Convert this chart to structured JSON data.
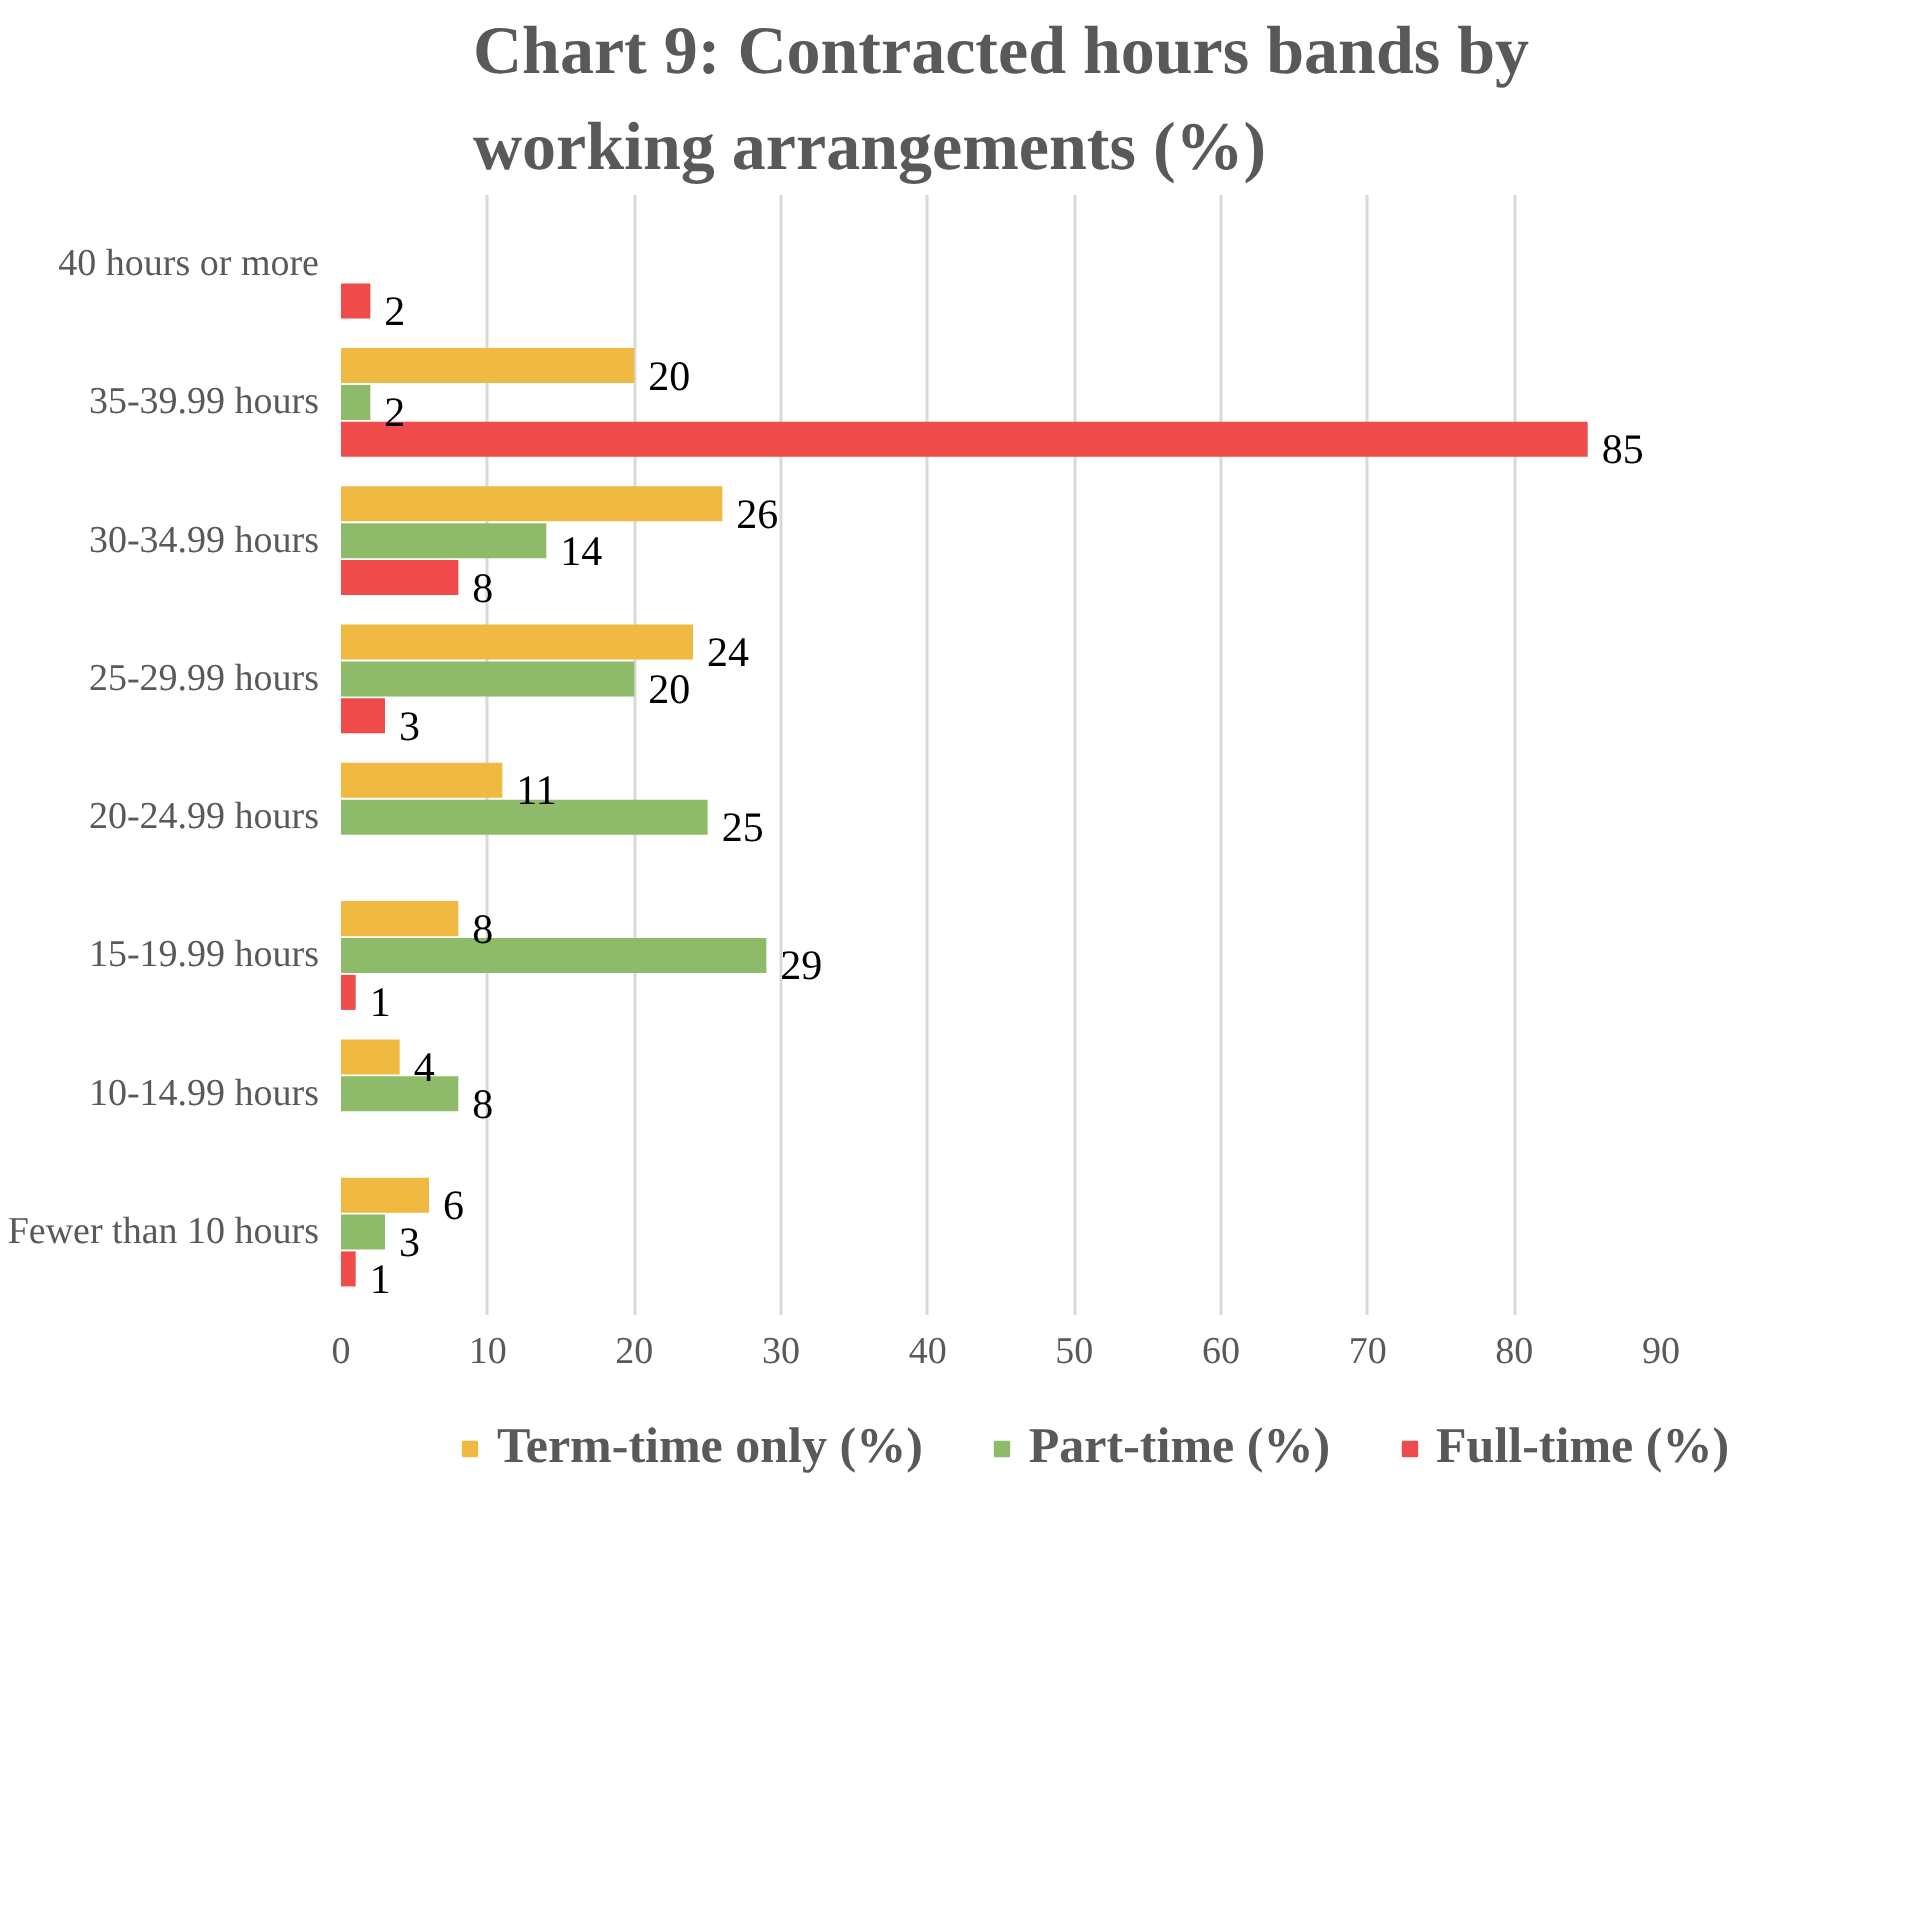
{
  "chart_data": {
    "type": "bar",
    "orientation": "horizontal",
    "title": "Chart 9: Contracted hours bands by working arrangements (%)",
    "categories": [
      "40 hours or more",
      "35-39.99 hours",
      "30-34.99 hours",
      "25-29.99 hours",
      "20-24.99 hours",
      "15-19.99 hours",
      "10-14.99 hours",
      "Fewer than 10 hours"
    ],
    "series": [
      {
        "name": "Term-time only (%)",
        "color": "#f0b942",
        "values": [
          null,
          20,
          26,
          24,
          11,
          8,
          4,
          6
        ]
      },
      {
        "name": "Part-time (%)",
        "color": "#8dbb6a",
        "values": [
          null,
          2,
          14,
          20,
          25,
          29,
          8,
          3
        ]
      },
      {
        "name": "Full-time (%)",
        "color": "#ef4b4b",
        "values": [
          2,
          85,
          8,
          3,
          null,
          1,
          null,
          1
        ]
      }
    ],
    "xlim": [
      0,
      90
    ],
    "xticks": [
      0,
      10,
      20,
      30,
      40,
      50,
      60,
      70,
      80,
      90
    ],
    "grid": "x",
    "legend": "bottom",
    "data_labels": true
  }
}
